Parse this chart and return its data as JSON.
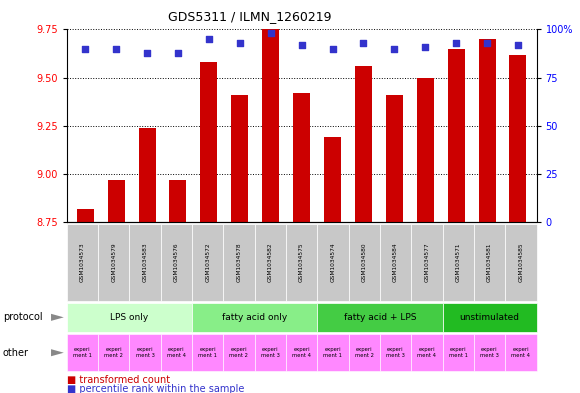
{
  "title": "GDS5311 / ILMN_1260219",
  "samples": [
    "GSM1034573",
    "GSM1034579",
    "GSM1034583",
    "GSM1034576",
    "GSM1034572",
    "GSM1034578",
    "GSM1034582",
    "GSM1034575",
    "GSM1034574",
    "GSM1034580",
    "GSM1034584",
    "GSM1034577",
    "GSM1034571",
    "GSM1034581",
    "GSM1034585"
  ],
  "transformed_count": [
    8.82,
    8.97,
    9.24,
    8.97,
    9.58,
    9.41,
    9.75,
    9.42,
    9.19,
    9.56,
    9.41,
    9.5,
    9.65,
    9.7,
    9.62
  ],
  "percentile_rank": [
    90,
    90,
    88,
    88,
    95,
    93,
    98,
    92,
    90,
    93,
    90,
    91,
    93,
    93,
    92
  ],
  "ylim_left": [
    8.75,
    9.75
  ],
  "ylim_right": [
    0,
    100
  ],
  "yticks_left": [
    8.75,
    9.0,
    9.25,
    9.5,
    9.75
  ],
  "yticks_right": [
    0,
    25,
    50,
    75,
    100
  ],
  "bar_color": "#CC0000",
  "dot_color": "#3333CC",
  "protocol_groups": [
    {
      "label": "LPS only",
      "start": 0,
      "end": 4,
      "color": "#CCFFCC"
    },
    {
      "label": "fatty acid only",
      "start": 4,
      "end": 8,
      "color": "#88EE88"
    },
    {
      "label": "fatty acid + LPS",
      "start": 8,
      "end": 12,
      "color": "#44CC44"
    },
    {
      "label": "unstimulated",
      "start": 12,
      "end": 15,
      "color": "#22BB22"
    }
  ],
  "experiment_labels": [
    "experi\nment 1",
    "experi\nment 2",
    "experi\nment 3",
    "experi\nment 4",
    "experi\nment 1",
    "experi\nment 2",
    "experi\nment 3",
    "experi\nment 4",
    "experi\nment 1",
    "experi\nment 2",
    "experi\nment 3",
    "experi\nment 4",
    "experi\nment 1",
    "experi\nment 3",
    "experi\nment 4"
  ],
  "experiment_colors": [
    "#FF88FF",
    "#FF88FF",
    "#FF88FF",
    "#FF88FF",
    "#FF88FF",
    "#FF88FF",
    "#FF88FF",
    "#FF88FF",
    "#FF88FF",
    "#FF88FF",
    "#FF88FF",
    "#FF88FF",
    "#FF88FF",
    "#FF88FF",
    "#FF88FF"
  ],
  "sample_bg_color": "#C8C8C8",
  "arrow_color": "#888888"
}
